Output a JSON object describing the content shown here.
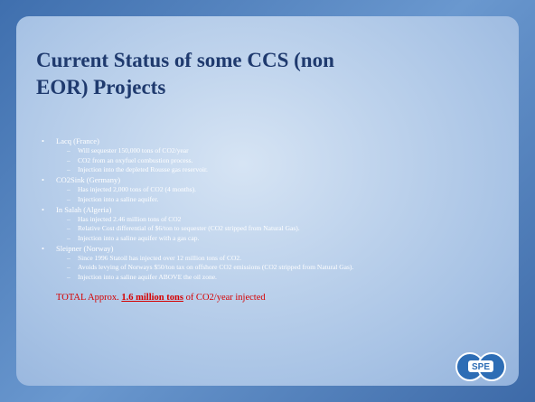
{
  "slide": {
    "title": [
      "Current Status of some CCS (non",
      "EOR) Projects"
    ],
    "bullets": [
      {
        "text": "Lacq (France)",
        "items": [
          "Will sequester 150,000 tons of CO2/year",
          "CO2 from an oxyfuel combustion process.",
          "Injection into the depleted Rousse gas reservoir."
        ]
      },
      {
        "text": "CO2Sink (Germany)",
        "items": [
          "Has injected 2,000 tons of CO2 (4 months).",
          "Injection into a saline aquifer."
        ]
      },
      {
        "text": "In Salah (Algeria)",
        "items": [
          "Has injected 2.46 million tons of CO2",
          "Relative Cost differential of $6/ton to sequester (CO2 stripped from Natural Gas).",
          "Injection into a saline aquifer with a gas cap."
        ]
      },
      {
        "text": "Sleipner (Norway)",
        "items": [
          "Since 1996 Statoil has injected over 12 million tons of CO2.",
          "Avoids levying of Norways $50/ton tax on offshore CO2 emissions (CO2 stripped from Natural Gas).",
          "Injection into a saline aquifer ABOVE the oil zone."
        ]
      }
    ],
    "total": {
      "before": "TOTAL Approx.",
      "emphasis": "1.6 million tons",
      "after": "of CO2/year injected"
    },
    "logo": "SPE"
  }
}
